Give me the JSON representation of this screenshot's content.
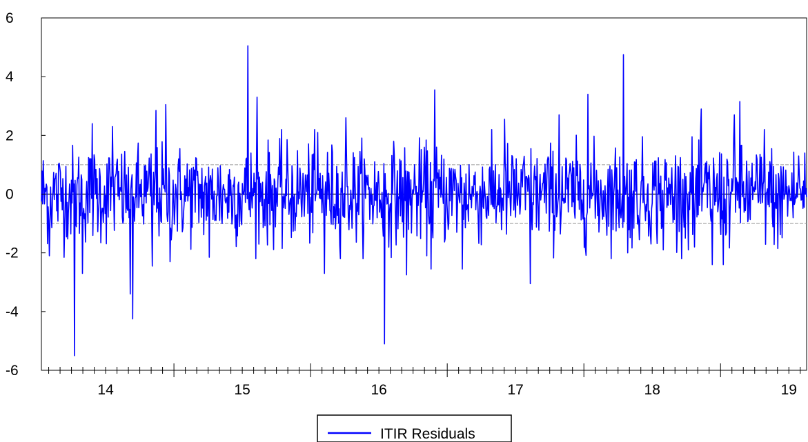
{
  "chart_data": {
    "type": "line",
    "title": "",
    "xlabel": "",
    "ylabel": "",
    "ylim": [
      -6,
      6
    ],
    "xlim": [
      13.53,
      19.13
    ],
    "y_ticks": [
      "6",
      "4",
      "2",
      "0",
      "-2",
      "-4",
      "-6"
    ],
    "x_ticks": [
      "14",
      "15",
      "16",
      "17",
      "18",
      "19"
    ],
    "reference_lines": [
      1,
      0,
      -1
    ],
    "legend": {
      "position": "bottom-center",
      "entries": [
        "ITIR Residuals"
      ]
    },
    "grid": false,
    "series": [
      {
        "name": "ITIR Residuals",
        "color": "#0000ff",
        "observations": 1250,
        "notable_points": [
          {
            "x": 13.59,
            "y": 2.5
          },
          {
            "x": 13.59,
            "y": -2.1
          },
          {
            "x": 13.77,
            "y": -5.5
          },
          {
            "x": 13.83,
            "y": -2.7
          },
          {
            "x": 13.9,
            "y": 2.4
          },
          {
            "x": 14.05,
            "y": 2.3
          },
          {
            "x": 14.18,
            "y": 3.05
          },
          {
            "x": 14.18,
            "y": -3.4
          },
          {
            "x": 14.2,
            "y": -4.25
          },
          {
            "x": 14.34,
            "y": -2.45
          },
          {
            "x": 14.37,
            "y": 2.85
          },
          {
            "x": 14.44,
            "y": 3.05
          },
          {
            "x": 14.47,
            "y": -2.3
          },
          {
            "x": 14.76,
            "y": -2.15
          },
          {
            "x": 15.04,
            "y": 5.05
          },
          {
            "x": 15.11,
            "y": 3.3
          },
          {
            "x": 15.29,
            "y": -1.85
          },
          {
            "x": 15.55,
            "y": 2.1
          },
          {
            "x": 15.6,
            "y": -2.7
          },
          {
            "x": 15.76,
            "y": 2.6
          },
          {
            "x": 16.04,
            "y": -5.1
          },
          {
            "x": 16.2,
            "y": -2.75
          },
          {
            "x": 16.38,
            "y": -2.55
          },
          {
            "x": 16.41,
            "y": 3.55
          },
          {
            "x": 16.61,
            "y": -2.55
          },
          {
            "x": 16.92,
            "y": 2.55
          },
          {
            "x": 17.11,
            "y": -3.05
          },
          {
            "x": 17.32,
            "y": 2.7
          },
          {
            "x": 17.53,
            "y": 3.4
          },
          {
            "x": 17.79,
            "y": 4.75
          },
          {
            "x": 17.82,
            "y": -2.0
          },
          {
            "x": 18.08,
            "y": -1.9
          },
          {
            "x": 18.31,
            "y": -1.8
          },
          {
            "x": 18.36,
            "y": 2.9
          },
          {
            "x": 18.44,
            "y": -2.4
          },
          {
            "x": 18.52,
            "y": -2.4
          },
          {
            "x": 18.6,
            "y": 2.7
          },
          {
            "x": 18.64,
            "y": 3.15
          },
          {
            "x": 18.82,
            "y": 2.2
          },
          {
            "x": 18.92,
            "y": -1.85
          },
          {
            "x": 19.07,
            "y": 1.3
          }
        ]
      }
    ]
  }
}
